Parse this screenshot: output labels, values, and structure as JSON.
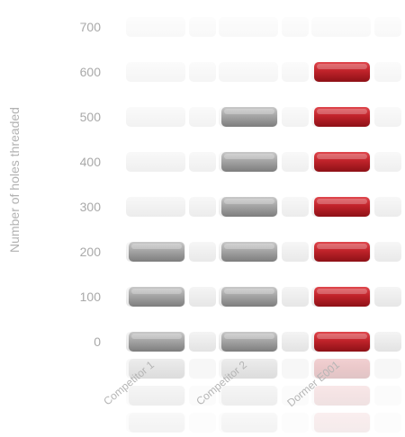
{
  "chart_data": {
    "type": "bar",
    "categories": [
      "Competitor 1",
      "Competitor 2",
      "Dormer E001"
    ],
    "series": [
      {
        "values": [
          200,
          500,
          600
        ]
      }
    ],
    "ylabel": "Number of holes threaded",
    "ylim": [
      0,
      700
    ],
    "yticks": [
      0,
      100,
      200,
      300,
      400,
      500,
      600,
      700
    ],
    "grid": false,
    "colors": {
      "competitor": "#9c9c9c",
      "highlight": "#b91f26",
      "background_blocks": "#e6e6e6",
      "tick_text": "#a9a9a9"
    }
  }
}
